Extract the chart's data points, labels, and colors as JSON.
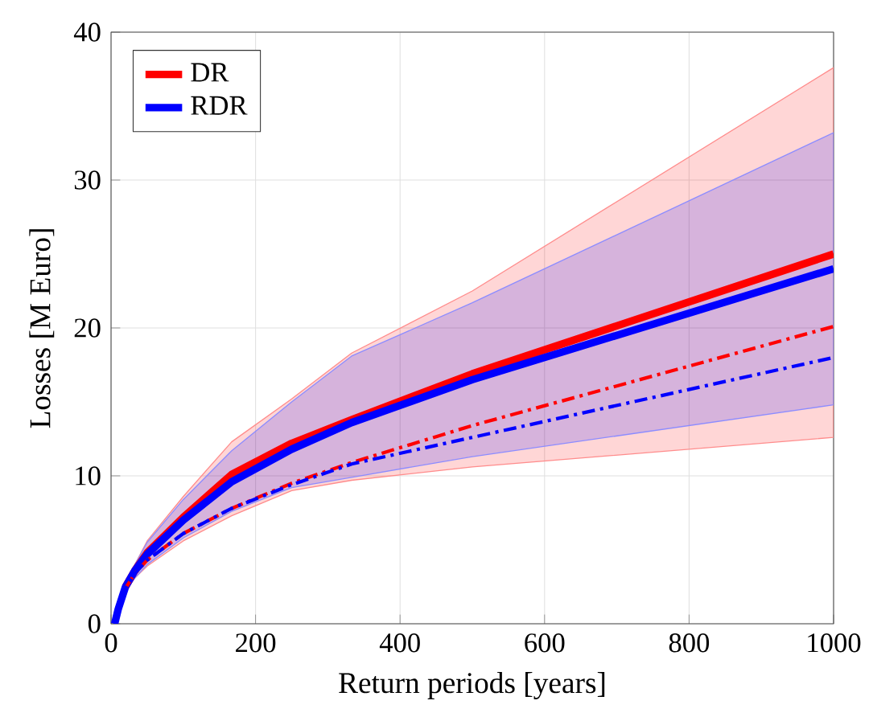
{
  "chart_data": {
    "type": "line",
    "xlabel": "Return periods [years]",
    "ylabel": "Losses [M Euro]",
    "x": [
      5,
      10,
      20,
      33,
      50,
      100,
      167,
      250,
      333,
      500,
      1000
    ],
    "series": [
      {
        "name": "DR",
        "color": "#ff0000",
        "values": [
          null,
          null,
          2.5,
          3.6,
          4.8,
          7.2,
          10.1,
          12.2,
          13.8,
          16.9,
          25.0
        ],
        "lower": [
          0,
          0.9,
          2.2,
          3.1,
          3.9,
          5.6,
          7.3,
          9.0,
          9.7,
          10.6,
          12.6
        ],
        "upper": [
          0,
          1.1,
          2.7,
          4.0,
          5.6,
          8.6,
          12.3,
          15.2,
          18.3,
          22.5,
          37.6
        ]
      },
      {
        "name": "RDR",
        "color": "#0000ff",
        "values": [
          0,
          1.0,
          2.5,
          3.6,
          4.7,
          7.0,
          9.6,
          11.8,
          13.6,
          16.5,
          24.0
        ],
        "lower": [
          0,
          0.9,
          2.2,
          3.1,
          4.0,
          5.8,
          7.6,
          9.2,
          9.9,
          11.3,
          14.8
        ],
        "upper": [
          0,
          1.1,
          2.7,
          4.0,
          5.5,
          8.4,
          11.7,
          15.0,
          18.1,
          21.7,
          33.2
        ]
      },
      {
        "color": "#ff0000",
        "line_style": "dashed",
        "values": [
          null,
          null,
          2.4,
          3.4,
          4.3,
          6.1,
          7.8,
          9.5,
          10.9,
          13.4,
          20.1
        ]
      },
      {
        "color": "#0000ff",
        "line_style": "dashed",
        "values": [
          0,
          1.0,
          2.4,
          3.4,
          4.3,
          6.1,
          7.8,
          9.4,
          10.8,
          12.6,
          18.0
        ]
      }
    ],
    "xlim": [
      0,
      1000
    ],
    "xticks": [
      0,
      200,
      400,
      600,
      800,
      1000
    ],
    "ylim": [
      0,
      40
    ],
    "yticks": [
      0,
      10,
      20,
      30,
      40
    ],
    "grid": true,
    "legend": "top left",
    "line_style": "solid"
  }
}
